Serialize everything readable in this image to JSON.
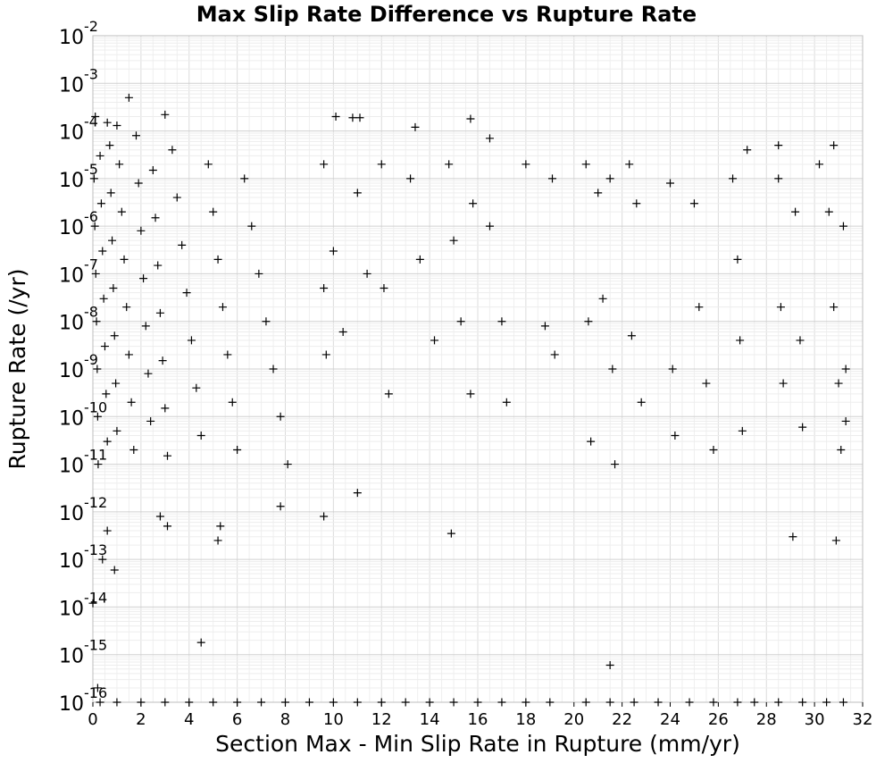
{
  "chart_data": {
    "type": "scatter",
    "title": "Max Slip Rate Difference vs Rupture Rate",
    "xlabel": "Section Max - Min Slip Rate in Rupture (mm/yr)",
    "ylabel": "Rupture Rate (/yr)",
    "x_scale": "linear",
    "y_scale": "log",
    "xlim": [
      0,
      32
    ],
    "ylim": [
      1e-16,
      0.01
    ],
    "x_ticks": [
      "0",
      "2",
      "4",
      "6",
      "8",
      "10",
      "12",
      "14",
      "16",
      "18",
      "20",
      "22",
      "24",
      "26",
      "28",
      "30",
      "32"
    ],
    "y_ticks": [
      {
        "base": "10",
        "exp": "-2"
      },
      {
        "base": "10",
        "exp": "-3"
      },
      {
        "base": "10",
        "exp": "-4"
      },
      {
        "base": "10",
        "exp": "-5"
      },
      {
        "base": "10",
        "exp": "-6"
      },
      {
        "base": "10",
        "exp": "-7"
      },
      {
        "base": "10",
        "exp": "-8"
      },
      {
        "base": "10",
        "exp": "-9"
      },
      {
        "base": "10",
        "exp": "-10"
      },
      {
        "base": "10",
        "exp": "-11"
      },
      {
        "base": "10",
        "exp": "-12"
      },
      {
        "base": "10",
        "exp": "-13"
      },
      {
        "base": "10",
        "exp": "-14"
      },
      {
        "base": "10",
        "exp": "-15"
      },
      {
        "base": "10",
        "exp": "-16"
      }
    ],
    "grid": true,
    "marker": "plus",
    "marker_color": "#000000",
    "series": [
      {
        "values": [
          [
            0.0,
            1.2e-14
          ],
          [
            0.2,
            2e-16
          ],
          [
            0.4,
            1e-13
          ],
          [
            0.6,
            4e-13
          ],
          [
            0.9,
            6e-14
          ],
          [
            1.5,
            0.0005
          ],
          [
            3.0,
            0.00022
          ],
          [
            0.1,
            0.0002
          ],
          [
            0.6,
            0.00015
          ],
          [
            1.0,
            0.00013
          ],
          [
            2.8,
            8e-13
          ],
          [
            3.1,
            5e-13
          ],
          [
            4.5,
            1.8e-15
          ],
          [
            5.3,
            5e-13
          ],
          [
            5.2,
            2.5e-13
          ],
          [
            7.8,
            1.3e-12
          ],
          [
            9.6,
            8e-13
          ],
          [
            10.1,
            0.0002
          ],
          [
            10.8,
            0.00019
          ],
          [
            11.1,
            0.00019
          ],
          [
            11.0,
            2.5e-12
          ],
          [
            13.4,
            0.00012
          ],
          [
            14.9,
            3.5e-13
          ],
          [
            15.7,
            0.00018
          ],
          [
            16.5,
            7e-05
          ],
          [
            21.5,
            6e-16
          ],
          [
            29.1,
            3e-13
          ],
          [
            30.9,
            2.5e-13
          ],
          [
            30.8,
            5e-05
          ],
          [
            28.5,
            5e-05
          ],
          [
            0.3,
            1e-16
          ],
          [
            1.0,
            1e-16
          ],
          [
            2.0,
            1e-16
          ],
          [
            3.0,
            1e-16
          ],
          [
            4.0,
            1e-16
          ],
          [
            5.0,
            1e-16
          ],
          [
            6.0,
            1e-16
          ],
          [
            7.0,
            1e-16
          ],
          [
            8.0,
            1e-16
          ],
          [
            9.0,
            1e-16
          ],
          [
            10.0,
            1e-16
          ],
          [
            11.0,
            1e-16
          ],
          [
            12.0,
            1e-16
          ],
          [
            13.0,
            1e-16
          ],
          [
            14.0,
            1e-16
          ],
          [
            15.0,
            1e-16
          ],
          [
            16.0,
            1e-16
          ],
          [
            17.0,
            1e-16
          ],
          [
            18.0,
            1e-16
          ],
          [
            19.0,
            1e-16
          ],
          [
            20.5,
            1e-16
          ],
          [
            21.5,
            1e-16
          ],
          [
            22.5,
            1e-16
          ],
          [
            23.5,
            1e-16
          ],
          [
            24.8,
            1e-16
          ],
          [
            25.8,
            1e-16
          ],
          [
            26.8,
            1e-16
          ],
          [
            27.5,
            1e-16
          ],
          [
            28.5,
            1e-16
          ],
          [
            29.5,
            1e-16
          ],
          [
            30.5,
            1e-16
          ],
          [
            31.2,
            1e-16
          ],
          [
            0.05,
            1e-05
          ],
          [
            0.08,
            1e-06
          ],
          [
            0.12,
            1e-07
          ],
          [
            0.15,
            1e-08
          ],
          [
            0.18,
            1e-09
          ],
          [
            0.2,
            1e-10
          ],
          [
            0.22,
            1e-11
          ],
          [
            0.3,
            3e-05
          ],
          [
            0.35,
            3e-06
          ],
          [
            0.4,
            3e-07
          ],
          [
            0.45,
            3e-08
          ],
          [
            0.5,
            3e-09
          ],
          [
            0.55,
            3e-10
          ],
          [
            0.6,
            3e-11
          ],
          [
            0.7,
            5e-05
          ],
          [
            0.75,
            5e-06
          ],
          [
            0.8,
            5e-07
          ],
          [
            0.85,
            5e-08
          ],
          [
            0.9,
            5e-09
          ],
          [
            0.95,
            5e-10
          ],
          [
            1.0,
            5e-11
          ],
          [
            1.1,
            2e-05
          ],
          [
            1.2,
            2e-06
          ],
          [
            1.3,
            2e-07
          ],
          [
            1.4,
            2e-08
          ],
          [
            1.5,
            2e-09
          ],
          [
            1.6,
            2e-10
          ],
          [
            1.7,
            2e-11
          ],
          [
            1.8,
            8e-05
          ],
          [
            1.9,
            8e-06
          ],
          [
            2.0,
            8e-07
          ],
          [
            2.1,
            8e-08
          ],
          [
            2.2,
            8e-09
          ],
          [
            2.3,
            8e-10
          ],
          [
            2.4,
            8e-11
          ],
          [
            2.5,
            1.5e-05
          ],
          [
            2.6,
            1.5e-06
          ],
          [
            2.7,
            1.5e-07
          ],
          [
            2.8,
            1.5e-08
          ],
          [
            2.9,
            1.5e-09
          ],
          [
            3.0,
            1.5e-10
          ],
          [
            3.1,
            1.5e-11
          ],
          [
            3.3,
            4e-05
          ],
          [
            3.5,
            4e-06
          ],
          [
            3.7,
            4e-07
          ],
          [
            3.9,
            4e-08
          ],
          [
            4.1,
            4e-09
          ],
          [
            4.3,
            4e-10
          ],
          [
            4.5,
            4e-11
          ],
          [
            4.8,
            2e-05
          ],
          [
            5.0,
            2e-06
          ],
          [
            5.2,
            2e-07
          ],
          [
            5.4,
            2e-08
          ],
          [
            5.6,
            2e-09
          ],
          [
            5.8,
            2e-10
          ],
          [
            6.0,
            2e-11
          ],
          [
            6.3,
            1e-05
          ],
          [
            6.6,
            1e-06
          ],
          [
            6.9,
            1e-07
          ],
          [
            7.2,
            1e-08
          ],
          [
            7.5,
            1e-09
          ],
          [
            7.8,
            1e-10
          ],
          [
            8.1,
            1e-11
          ],
          [
            9.6,
            2e-05
          ],
          [
            9.6,
            5e-08
          ],
          [
            9.7,
            2e-09
          ],
          [
            10.0,
            3e-07
          ],
          [
            10.4,
            6e-09
          ],
          [
            11.0,
            5e-06
          ],
          [
            11.4,
            1e-07
          ],
          [
            12.0,
            2e-05
          ],
          [
            12.1,
            5e-08
          ],
          [
            12.3,
            3e-10
          ],
          [
            13.2,
            1e-05
          ],
          [
            13.6,
            2e-07
          ],
          [
            14.2,
            4e-09
          ],
          [
            14.8,
            2e-05
          ],
          [
            15.0,
            5e-07
          ],
          [
            15.3,
            1e-08
          ],
          [
            15.7,
            3e-10
          ],
          [
            15.8,
            3e-06
          ],
          [
            16.5,
            1e-06
          ],
          [
            17.0,
            1e-08
          ],
          [
            17.2,
            2e-10
          ],
          [
            18.0,
            2e-05
          ],
          [
            18.8,
            8e-09
          ],
          [
            19.1,
            1e-05
          ],
          [
            19.2,
            2e-09
          ],
          [
            20.5,
            2e-05
          ],
          [
            20.6,
            1e-08
          ],
          [
            20.7,
            3e-11
          ],
          [
            21.0,
            5e-06
          ],
          [
            21.2,
            3e-08
          ],
          [
            21.5,
            1e-05
          ],
          [
            21.6,
            1e-09
          ],
          [
            21.7,
            1e-11
          ],
          [
            22.3,
            2e-05
          ],
          [
            22.4,
            5e-09
          ],
          [
            22.6,
            3e-06
          ],
          [
            22.8,
            2e-10
          ],
          [
            24.0,
            8e-06
          ],
          [
            24.1,
            1e-09
          ],
          [
            24.2,
            4e-11
          ],
          [
            25.0,
            3e-06
          ],
          [
            25.2,
            2e-08
          ],
          [
            25.5,
            5e-10
          ],
          [
            25.8,
            2e-11
          ],
          [
            26.6,
            1e-05
          ],
          [
            26.8,
            2e-07
          ],
          [
            26.9,
            4e-09
          ],
          [
            27.0,
            5e-11
          ],
          [
            27.2,
            4e-05
          ],
          [
            28.5,
            1e-05
          ],
          [
            28.6,
            2e-08
          ],
          [
            28.7,
            5e-10
          ],
          [
            29.2,
            2e-06
          ],
          [
            29.4,
            4e-09
          ],
          [
            29.5,
            6e-11
          ],
          [
            30.2,
            2e-05
          ],
          [
            30.6,
            2e-06
          ],
          [
            30.8,
            2e-08
          ],
          [
            31.0,
            5e-10
          ],
          [
            31.1,
            2e-11
          ],
          [
            31.2,
            1e-06
          ],
          [
            31.3,
            1e-09
          ],
          [
            31.3,
            8e-11
          ]
        ]
      }
    ]
  }
}
